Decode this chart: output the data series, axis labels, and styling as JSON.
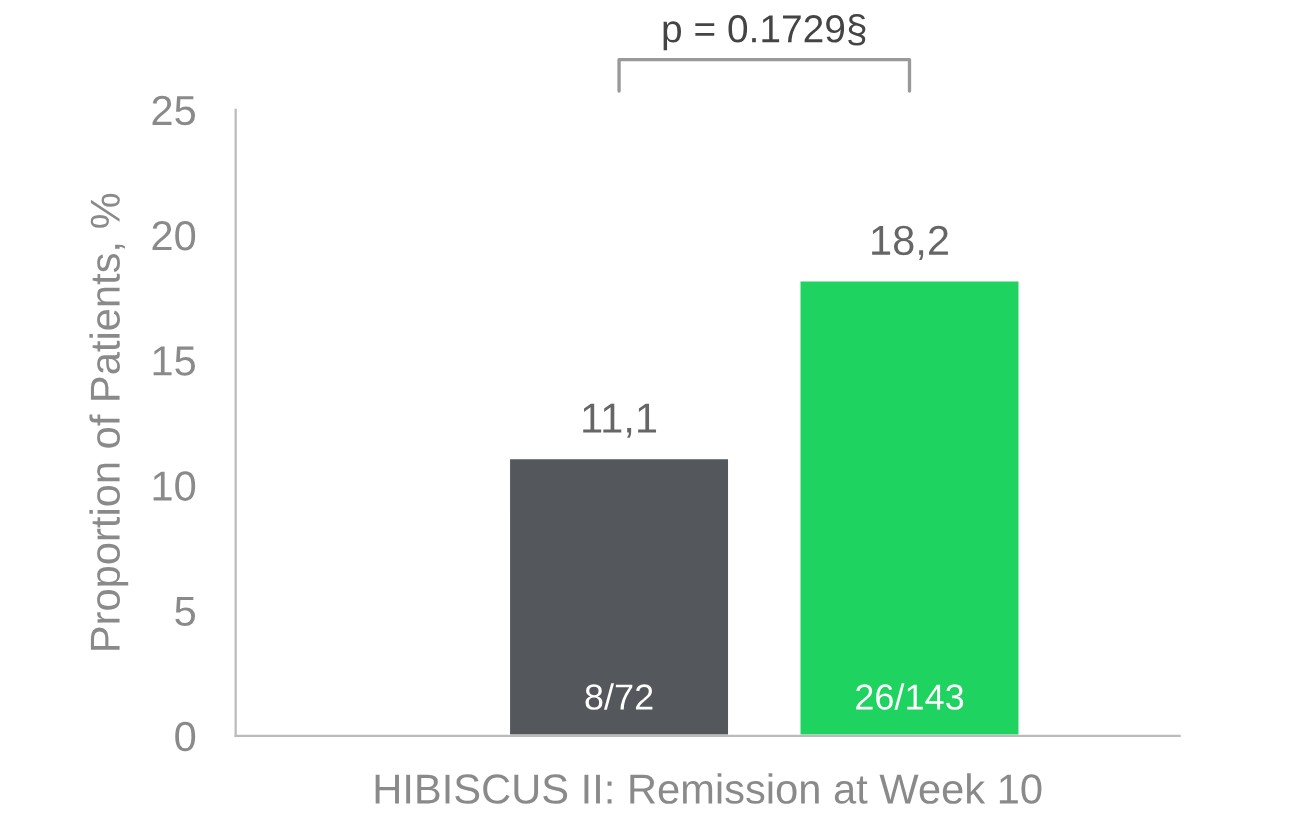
{
  "chart_data": {
    "type": "bar",
    "categories": [
      null,
      null
    ],
    "series": [
      {
        "values": [
          11.1,
          18.2
        ],
        "colors": [
          "#54585c",
          "#1ed35f"
        ],
        "value_labels": [
          "11,1",
          "18,2"
        ]
      }
    ],
    "xlabel": "HIBISCUS II: Remission at Week 10",
    "ylabel": "Proportion of Patients, %",
    "ylim": [
      0,
      25
    ],
    "yticks": [
      0,
      5,
      10,
      15,
      20,
      25
    ],
    "grid": false,
    "legend": false,
    "annotations": [
      "8/72",
      "26/143",
      "p = 0.1729§"
    ]
  }
}
